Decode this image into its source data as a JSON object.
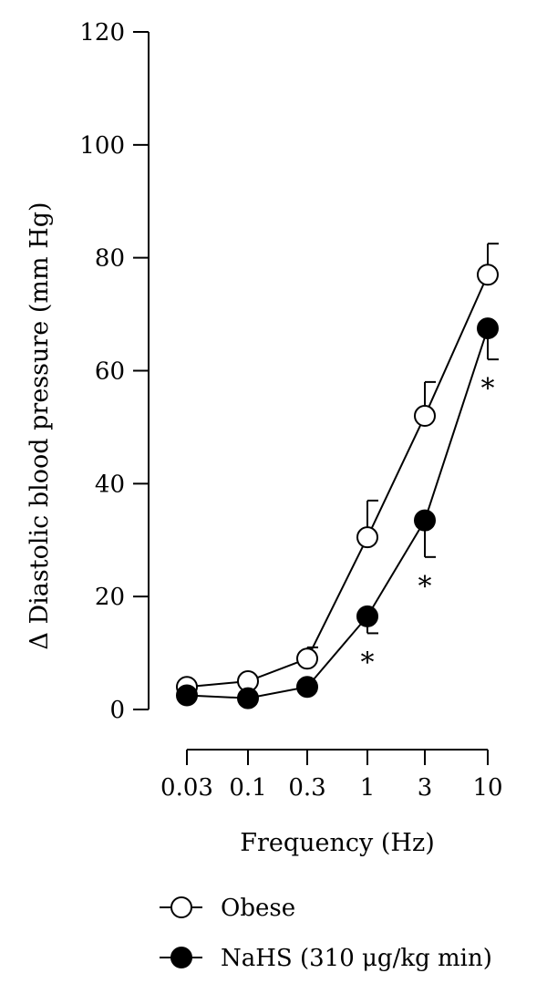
{
  "chart_data": {
    "type": "line",
    "title": "",
    "xlabel": "Frequency (Hz)",
    "ylabel": "Δ Diastolic blood pressure (mm Hg)",
    "categories": [
      "0.03",
      "0.1",
      "0.3",
      "1",
      "3",
      "10"
    ],
    "ylim": [
      0,
      120
    ],
    "yticks": [
      "0",
      "20",
      "40",
      "60",
      "80",
      "100",
      "120"
    ],
    "grid": false,
    "legend_position": "bottom-left",
    "series": [
      {
        "name": "Obese",
        "marker": "open-circle",
        "values": [
          4,
          5,
          9,
          30.5,
          52,
          77
        ],
        "error_up": [
          0,
          0,
          2,
          6.5,
          6,
          5.5
        ],
        "error_down": [
          0,
          0,
          0,
          0,
          0,
          0
        ]
      },
      {
        "name": "NaHS (310 μg/kg min)",
        "marker": "filled-circle",
        "values": [
          2.5,
          2,
          4,
          16.5,
          33.5,
          67.5
        ],
        "error_up": [
          0,
          0,
          0,
          0,
          0,
          0
        ],
        "error_down": [
          0,
          0,
          0,
          3,
          6.5,
          5.5
        ]
      }
    ],
    "annotations": [
      {
        "category": "1",
        "text": "*"
      },
      {
        "category": "3",
        "text": "*"
      },
      {
        "category": "10",
        "text": "*"
      }
    ]
  }
}
